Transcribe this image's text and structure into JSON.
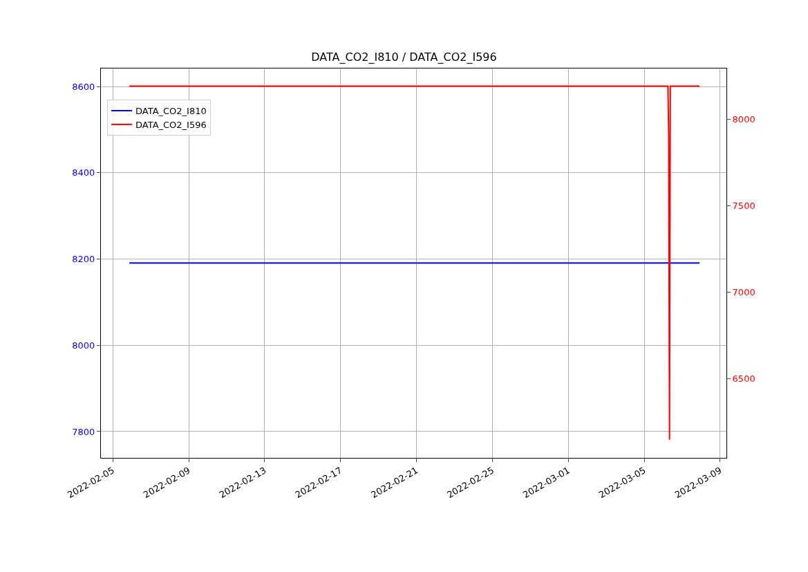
{
  "chart_data": {
    "type": "line",
    "title": "DATA_CO2_I810 / DATA_CO2_I596",
    "series": [
      {
        "name": "DATA_CO2_I810",
        "color": "#0000ff",
        "x": [
          "2022-02-05T21:00",
          "2022-03-06T08:00",
          "2022-03-07T22:00"
        ],
        "values": [
          8191,
          8191,
          8191
        ]
      },
      {
        "name": "DATA_CO2_I596",
        "color": "#ff0000",
        "axis": "y2",
        "x": [
          "2022-02-05T21:00",
          "2022-03-06T06:00",
          "2022-03-06T07:00",
          "2022-03-06T08:00",
          "2022-03-06T09:00",
          "2022-03-07T22:00"
        ],
        "values": [
          8190,
          8190,
          7900,
          6145,
          8190,
          8190
        ]
      }
    ],
    "xlim": [
      "2022-02-04T09:00",
      "2022-03-09T08:00"
    ],
    "xticks": [
      "2022-02-05",
      "2022-02-09",
      "2022-02-13",
      "2022-02-17",
      "2022-02-21",
      "2022-02-25",
      "2022-03-01",
      "2022-03-05",
      "2022-03-09"
    ],
    "ylim": [
      7739,
      8642
    ],
    "yticks": [
      7800,
      8000,
      8200,
      8400,
      8600
    ],
    "y2lim": [
      6040,
      8292
    ],
    "y2ticks": [
      6500,
      7000,
      7500,
      8000
    ],
    "grid": true,
    "legend": "top left"
  }
}
